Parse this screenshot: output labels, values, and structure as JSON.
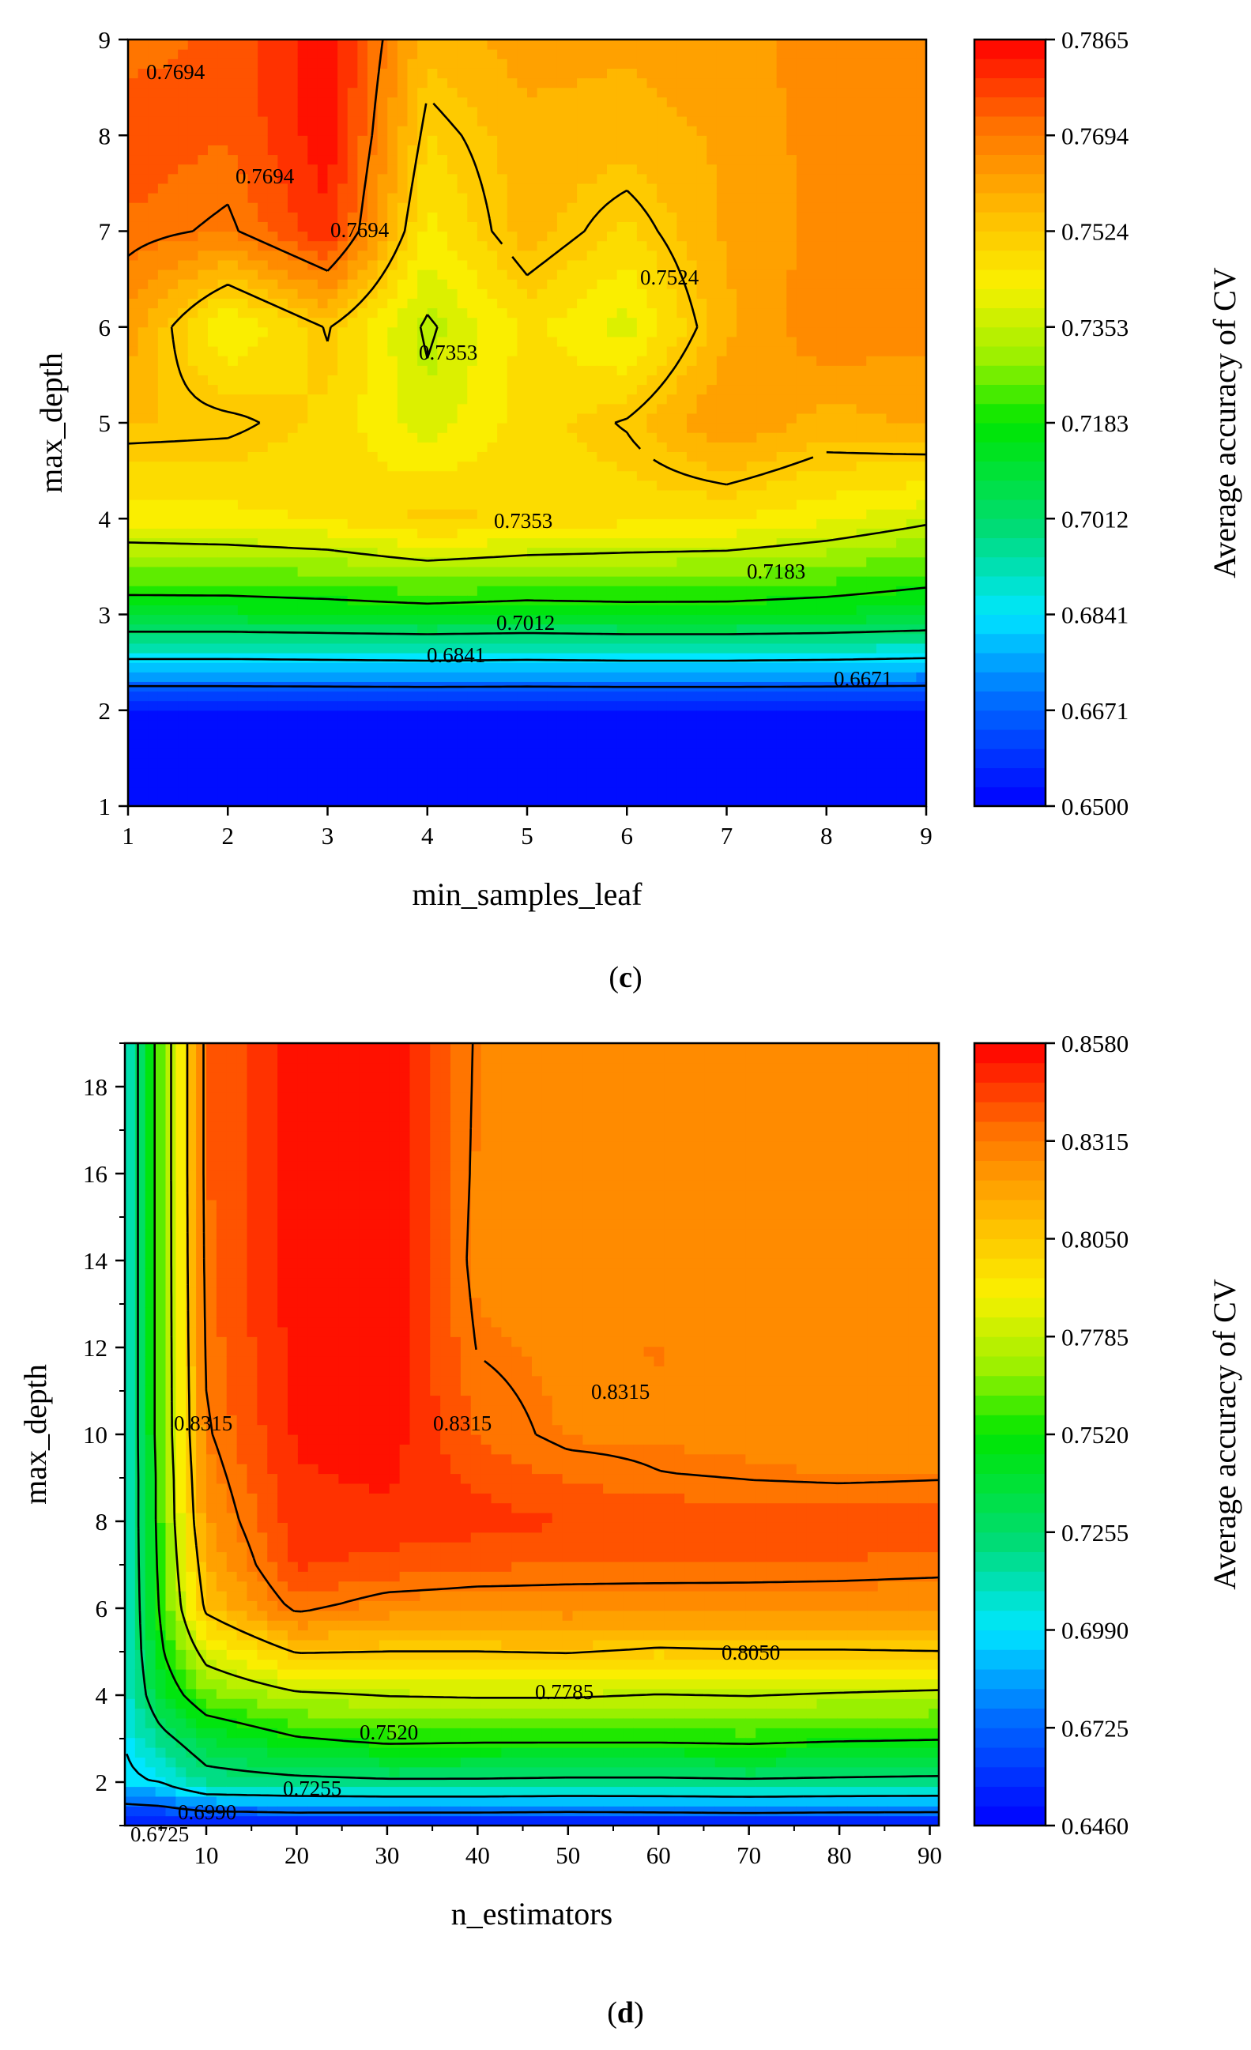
{
  "chart_data": [
    {
      "type": "heatmap",
      "panel_label": "c",
      "xlabel": "min_samples_leaf",
      "ylabel": "max_depth",
      "colorbar_label": "Average accuracy of CV",
      "xlim": [
        1,
        9
      ],
      "ylim": [
        1,
        9
      ],
      "x_ticks": [
        "1",
        "2",
        "3",
        "4",
        "5",
        "6",
        "7",
        "8",
        "9"
      ],
      "y_ticks": [
        "1",
        "2",
        "3",
        "4",
        "5",
        "6",
        "7",
        "8",
        "9"
      ],
      "colorbar_range": [
        0.65,
        0.7865
      ],
      "colorbar_ticks": [
        "0.6500",
        "0.6671",
        "0.6841",
        "0.7012",
        "0.7183",
        "0.7353",
        "0.7524",
        "0.7694",
        "0.7865"
      ],
      "x": [
        1,
        2,
        3,
        4,
        5,
        6,
        7,
        8,
        9
      ],
      "y": [
        1,
        2,
        3,
        4,
        5,
        6,
        7,
        8,
        9
      ],
      "z": [
        [
          0.65,
          0.65,
          0.65,
          0.65,
          0.65,
          0.65,
          0.65,
          0.65,
          0.65
        ],
        [
          0.652,
          0.652,
          0.652,
          0.652,
          0.652,
          0.652,
          0.652,
          0.652,
          0.652
        ],
        [
          0.712,
          0.712,
          0.713,
          0.714,
          0.713,
          0.714,
          0.714,
          0.713,
          0.711
        ],
        [
          0.743,
          0.744,
          0.746,
          0.752,
          0.749,
          0.747,
          0.746,
          0.742,
          0.737
        ],
        [
          0.755,
          0.754,
          0.749,
          0.738,
          0.748,
          0.753,
          0.764,
          0.757,
          0.76
        ],
        [
          0.762,
          0.74,
          0.753,
          0.734,
          0.747,
          0.739,
          0.758,
          0.768,
          0.765
        ],
        [
          0.772,
          0.768,
          0.781,
          0.744,
          0.757,
          0.749,
          0.76,
          0.765,
          0.766
        ],
        [
          0.776,
          0.773,
          0.785,
          0.75,
          0.757,
          0.757,
          0.76,
          0.766,
          0.767
        ],
        [
          0.771,
          0.774,
          0.786,
          0.756,
          0.762,
          0.76,
          0.762,
          0.766,
          0.767
        ]
      ],
      "contour_labels": [
        "0.7694",
        "0.7694",
        "0.7694",
        "0.7524",
        "0.7353",
        "0.7353",
        "0.7183",
        "0.7012",
        "0.6841",
        "0.6671"
      ]
    },
    {
      "type": "heatmap",
      "panel_label": "d",
      "xlabel": "n_estimators",
      "ylabel": "max_depth",
      "colorbar_label": "Average accuracy of CV",
      "xlim": [
        1,
        91
      ],
      "ylim": [
        1,
        19
      ],
      "x_ticks": [
        "10",
        "20",
        "30",
        "40",
        "50",
        "60",
        "70",
        "80",
        "90"
      ],
      "y_ticks": [
        "2",
        "4",
        "6",
        "8",
        "10",
        "12",
        "14",
        "16",
        "18"
      ],
      "colorbar_range": [
        0.646,
        0.858
      ],
      "colorbar_ticks": [
        "0.6460",
        "0.6725",
        "0.6990",
        "0.7255",
        "0.7520",
        "0.7785",
        "0.8050",
        "0.8315",
        "0.8580"
      ],
      "x": [
        1,
        5,
        10,
        20,
        30,
        40,
        50,
        60,
        70,
        80,
        91
      ],
      "y": [
        1,
        2,
        3,
        4,
        5,
        6,
        7,
        8,
        9,
        10,
        12,
        14,
        16,
        19
      ],
      "z": [
        [
          0.65,
          0.65,
          0.65,
          0.652,
          0.651,
          0.651,
          0.65,
          0.651,
          0.652,
          0.651,
          0.651
        ],
        [
          0.695,
          0.7,
          0.718,
          0.721,
          0.723,
          0.723,
          0.722,
          0.722,
          0.723,
          0.722,
          0.721
        ],
        [
          0.7,
          0.72,
          0.738,
          0.751,
          0.756,
          0.755,
          0.755,
          0.755,
          0.756,
          0.754,
          0.753
        ],
        [
          0.705,
          0.74,
          0.764,
          0.776,
          0.779,
          0.78,
          0.78,
          0.778,
          0.779,
          0.777,
          0.775
        ],
        [
          0.705,
          0.75,
          0.785,
          0.806,
          0.805,
          0.805,
          0.806,
          0.803,
          0.804,
          0.804,
          0.805
        ],
        [
          0.705,
          0.755,
          0.808,
          0.834,
          0.826,
          0.825,
          0.826,
          0.824,
          0.825,
          0.824,
          0.823
        ],
        [
          0.705,
          0.758,
          0.815,
          0.845,
          0.841,
          0.838,
          0.836,
          0.837,
          0.836,
          0.836,
          0.835
        ],
        [
          0.705,
          0.76,
          0.822,
          0.848,
          0.849,
          0.847,
          0.844,
          0.843,
          0.842,
          0.842,
          0.841
        ],
        [
          0.705,
          0.76,
          0.826,
          0.85,
          0.852,
          0.842,
          0.836,
          0.832,
          0.831,
          0.83,
          0.831
        ],
        [
          0.705,
          0.762,
          0.83,
          0.852,
          0.855,
          0.836,
          0.829,
          0.829,
          0.828,
          0.826,
          0.825
        ],
        [
          0.705,
          0.762,
          0.833,
          0.854,
          0.856,
          0.831,
          0.828,
          0.83,
          0.828,
          0.826,
          0.825
        ],
        [
          0.705,
          0.762,
          0.835,
          0.855,
          0.857,
          0.828,
          0.827,
          0.826,
          0.825,
          0.824,
          0.825
        ],
        [
          0.705,
          0.762,
          0.836,
          0.855,
          0.858,
          0.829,
          0.826,
          0.825,
          0.824,
          0.825,
          0.825
        ],
        [
          0.705,
          0.762,
          0.836,
          0.855,
          0.858,
          0.83,
          0.827,
          0.826,
          0.825,
          0.825,
          0.826
        ]
      ],
      "contour_labels": [
        "0.8315",
        "0.8315",
        "0.8315",
        "0.8050",
        "0.7785",
        "0.7520",
        "0.7255",
        "0.6990",
        "0.6725"
      ]
    }
  ]
}
